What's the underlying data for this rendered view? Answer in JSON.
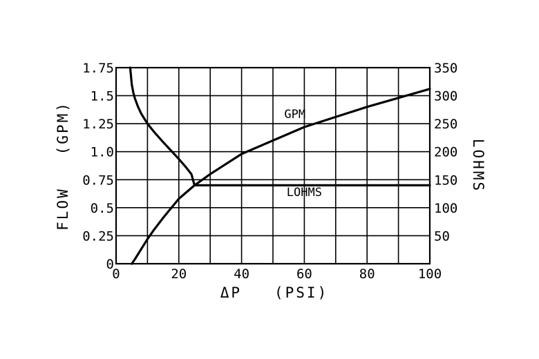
{
  "chart_data": {
    "type": "line",
    "xlabel": "ΔP   (PSI)",
    "ylabel": "FLOW   (GPM)",
    "y2label": "LOHMS",
    "xlim": [
      0,
      100
    ],
    "ylim": [
      0,
      1.75
    ],
    "y2lim": [
      0,
      350
    ],
    "grid": true,
    "x_ticks": [
      "0",
      "20",
      "40",
      "60",
      "80",
      "100"
    ],
    "y_ticks": [
      "0",
      "0.25",
      "0.5",
      "0.75",
      "1.0",
      "1.25",
      "1.5",
      "1.75"
    ],
    "y2_ticks": [
      "50",
      "100",
      "150",
      "200",
      "250",
      "300",
      "350"
    ],
    "series": [
      {
        "name": "GPM",
        "axis": "left",
        "x": [
          5,
          6,
          8,
          10,
          12,
          15,
          20,
          25,
          30,
          40,
          50,
          60,
          70,
          80,
          90,
          100
        ],
        "y": [
          0,
          0.04,
          0.13,
          0.22,
          0.3,
          0.41,
          0.58,
          0.7,
          0.8,
          0.98,
          1.1,
          1.22,
          1.31,
          1.4,
          1.48,
          1.56
        ]
      },
      {
        "name": "LOHMS",
        "axis": "right",
        "x": [
          4.5,
          5,
          5.5,
          6,
          7,
          8,
          10,
          12,
          15,
          18,
          20,
          22,
          24,
          25,
          30,
          40,
          60,
          80,
          100
        ],
        "y": [
          350,
          320,
          305,
          295,
          280,
          268,
          250,
          236,
          217,
          199,
          187,
          174,
          160,
          140,
          140,
          140,
          140,
          140,
          140
        ]
      }
    ],
    "annotations": [
      {
        "text": "GPM",
        "x": 57,
        "y": 1.3,
        "axis": "left"
      },
      {
        "text": "LOHMS",
        "x": 60,
        "y": 121,
        "axis": "right"
      }
    ]
  }
}
